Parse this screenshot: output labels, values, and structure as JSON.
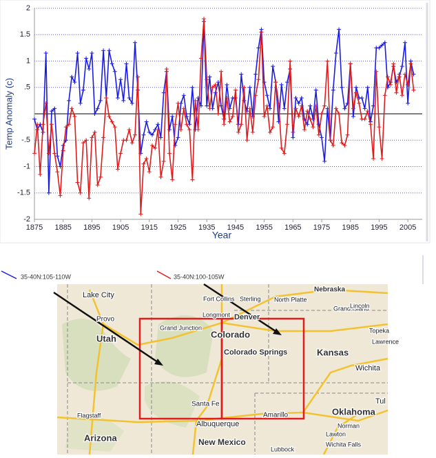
{
  "chart_data": {
    "type": "line",
    "xlabel": "Year",
    "ylabel": "Temp Anomaly (c)",
    "x": [
      1875,
      1876,
      1877,
      1878,
      1879,
      1880,
      1881,
      1882,
      1883,
      1884,
      1885,
      1886,
      1887,
      1888,
      1889,
      1890,
      1891,
      1892,
      1893,
      1894,
      1895,
      1896,
      1897,
      1898,
      1899,
      1900,
      1901,
      1902,
      1903,
      1904,
      1905,
      1906,
      1907,
      1908,
      1909,
      1910,
      1911,
      1912,
      1913,
      1914,
      1915,
      1916,
      1917,
      1918,
      1919,
      1920,
      1921,
      1922,
      1923,
      1924,
      1925,
      1926,
      1927,
      1928,
      1929,
      1930,
      1931,
      1932,
      1933,
      1934,
      1935,
      1936,
      1937,
      1938,
      1939,
      1940,
      1941,
      1942,
      1943,
      1944,
      1945,
      1946,
      1947,
      1948,
      1949,
      1950,
      1951,
      1952,
      1953,
      1954,
      1955,
      1956,
      1957,
      1958,
      1959,
      1960,
      1961,
      1962,
      1963,
      1964,
      1965,
      1966,
      1967,
      1968,
      1969,
      1970,
      1971,
      1972,
      1973,
      1974,
      1975,
      1976,
      1977,
      1978,
      1979,
      1980,
      1981,
      1982,
      1983,
      1984,
      1985,
      1986,
      1987,
      1988,
      1989,
      1990,
      1991,
      1992,
      1993,
      1994,
      1995,
      1996,
      1997,
      1998,
      1999,
      2000,
      2001,
      2002,
      2003,
      2004,
      2005,
      2006,
      2007
    ],
    "series": [
      {
        "name": "35-40N:105-110W",
        "color": "#1a1ae6",
        "values": [
          -0.1,
          -0.3,
          -0.2,
          -0.35,
          1.15,
          -1.5,
          0.05,
          0.1,
          -0.8,
          -1.0,
          -0.6,
          -0.5,
          0.25,
          0.7,
          0.6,
          1.15,
          0.2,
          0.45,
          1.05,
          0.85,
          1.15,
          0.0,
          0.1,
          0.25,
          1.2,
          0.3,
          1.2,
          0.95,
          0.8,
          0.3,
          0.65,
          0.25,
          0.95,
          0.3,
          0.2,
          1.35,
          0.45,
          -0.75,
          -0.4,
          -0.15,
          -0.35,
          -0.4,
          -0.3,
          -0.2,
          -0.45,
          0.4,
          0.8,
          -0.3,
          -0.05,
          -0.6,
          -0.45,
          0.2,
          0.35,
          -0.05,
          -0.2,
          0.5,
          -0.3,
          0.3,
          0.15,
          1.75,
          0.15,
          0.7,
          0.1,
          0.4,
          0.6,
          0.15,
          -0.1,
          0.55,
          0.1,
          0.3,
          0.3,
          -0.2,
          0.75,
          0.25,
          0.05,
          0.5,
          -0.05,
          0.75,
          1.25,
          1.6,
          0.6,
          0.35,
          0.1,
          0.9,
          0.6,
          -0.15,
          0.55,
          0.1,
          0.6,
          0.85,
          -0.45,
          0.3,
          0.2,
          0.3,
          -0.1,
          -0.2,
          0.15,
          -0.1,
          0.45,
          -0.2,
          -0.45,
          -0.9,
          0.1,
          -0.5,
          0.45,
          1.15,
          1.6,
          0.5,
          0.1,
          0.2,
          0.95,
          -0.05,
          0.5,
          0.3,
          0.3,
          0.1,
          0.5,
          -0.15,
          0.15,
          1.25,
          1.25,
          1.3,
          1.35,
          0.5,
          0.6,
          0.9,
          0.6,
          0.7,
          0.9,
          1.35,
          0.2,
          1.0,
          0.75
        ]
      },
      {
        "name": "35-40N:100-105W",
        "color": "#e01a1a",
        "values": [
          -0.75,
          -0.2,
          -1.15,
          -0.2,
          0.2,
          -0.75,
          -0.2,
          -0.75,
          -1.1,
          -1.55,
          -0.7,
          -0.25,
          -0.2,
          0.1,
          -0.05,
          -1.3,
          -1.5,
          -0.55,
          -0.5,
          -1.6,
          -0.45,
          -0.35,
          -1.35,
          -1.2,
          -0.45,
          0.3,
          -0.05,
          -0.15,
          -0.25,
          -1.05,
          -0.75,
          -0.5,
          -0.5,
          -0.3,
          -0.55,
          -0.4,
          0.7,
          -1.9,
          -0.95,
          -0.85,
          -1.1,
          -0.6,
          -0.65,
          -0.3,
          -1.2,
          -0.9,
          0.85,
          -0.75,
          -1.25,
          -0.2,
          0.2,
          -0.3,
          0.1,
          -0.2,
          -0.3,
          -1.25,
          0.25,
          -0.3,
          1.05,
          1.8,
          0.65,
          0.1,
          0.5,
          0.55,
          0.0,
          0.8,
          -0.2,
          0.3,
          -0.15,
          -0.05,
          0.45,
          -0.35,
          -0.2,
          0.5,
          -0.5,
          0.1,
          -0.35,
          0.35,
          0.65,
          1.55,
          -0.05,
          0.15,
          -0.35,
          -0.25,
          0.6,
          0.2,
          -0.65,
          -0.75,
          -0.2,
          1.0,
          -0.35,
          0.1,
          -0.05,
          0.15,
          -0.3,
          0.05,
          -0.1,
          -0.25,
          0.15,
          -0.4,
          0.0,
          0.15,
          1.0,
          -0.5,
          -0.6,
          0.1,
          0.0,
          -0.55,
          -0.6,
          -0.4,
          0.95,
          0.1,
          0.4,
          0.2,
          -0.1,
          -0.1,
          0.05,
          -0.2,
          -0.85,
          0.8,
          -0.25,
          -0.85,
          0.35,
          0.7,
          0.55,
          0.95,
          0.4,
          0.75,
          0.35,
          0.75,
          0.55,
          0.95,
          0.45
        ]
      }
    ],
    "xlim": [
      1875,
      2010
    ],
    "xticks": [
      1875,
      1885,
      1895,
      1905,
      1915,
      1925,
      1935,
      1945,
      1955,
      1965,
      1975,
      1985,
      1995,
      2005
    ],
    "ylim": [
      -2,
      2
    ],
    "yticks": [
      2,
      1.5,
      1,
      {
        "value": 0.5,
        "label": ".5"
      },
      {
        "value": -0.5,
        "label": "-.5"
      },
      -1,
      -1.5,
      -2
    ],
    "grid": true,
    "zero_line": true
  },
  "map": {
    "labels": [
      "Lake City",
      "Provo",
      "Utah",
      "Grand Junction",
      "Colorado",
      "Colorado Springs",
      "Longmont",
      "Denver",
      "Fort Collins",
      "Sterling",
      "North Platte",
      "Nebraska",
      "Grand Island",
      "Lincoln",
      "Kansas",
      "Topeka",
      "Lawrence",
      "Wichita",
      "Oklahoma",
      "Norman",
      "Lawton",
      "Wichita Falls",
      "Tul",
      "Amarillo",
      "Lubbock",
      "Santa Fe",
      "Albuquerque",
      "New Mexico",
      "Arizona",
      "Flagstaff"
    ]
  }
}
